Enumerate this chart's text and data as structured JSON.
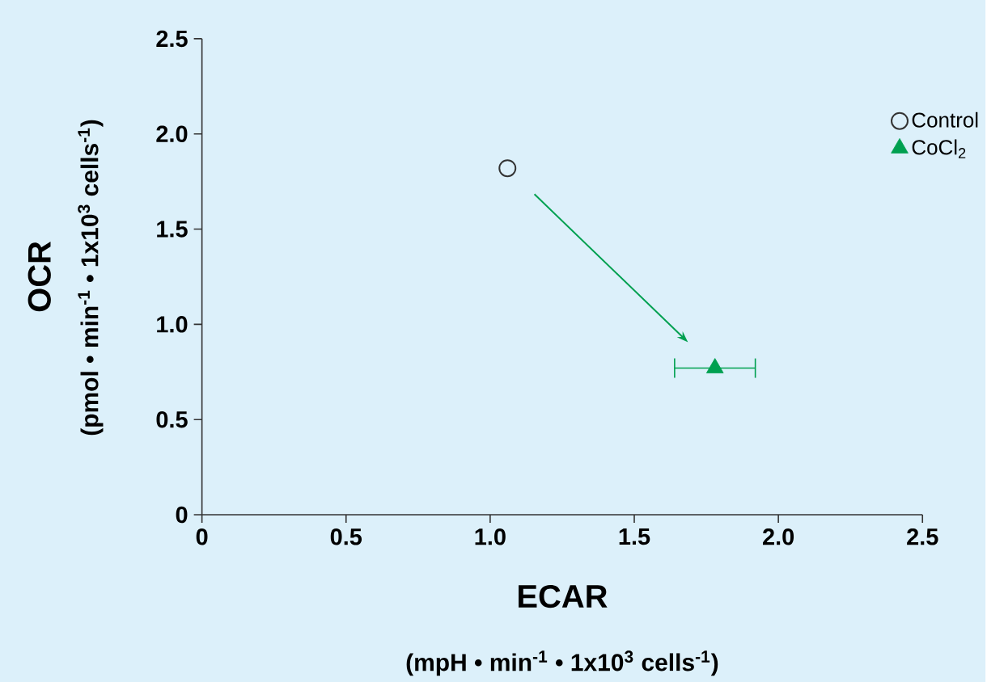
{
  "chart_data": {
    "type": "scatter",
    "xlabel": "ECAR",
    "ylabel": "OCR",
    "annotations": [
      "(mpH • min$^{-1}$ • 1x10$^{3}$ cells$^{-1}$)",
      "(pmol • min$^{-1}$ • 1x10$^{3}$ cells$^{-1}$)"
    ],
    "series": [
      {
        "name": "Control",
        "color": "#333333",
        "marker": "circle",
        "x": [
          1.06
        ],
        "values": [
          1.82
        ],
        "xerrors": [
          null
        ]
      },
      {
        "name": "CoCl$_{2}$",
        "color": "#00a050",
        "marker": "triangle",
        "x": [
          1.78
        ],
        "values": [
          0.77
        ],
        "xerrors": [
          [
            1.64,
            1.92
          ]
        ]
      }
    ],
    "xlim": [
      0,
      2.5
    ],
    "ylim": [
      0,
      2.5
    ],
    "xticks": [
      0,
      0.5,
      {
        "value": 1,
        "label": "1.0"
      },
      1.5,
      {
        "value": 2,
        "label": "2.0"
      },
      2.5
    ],
    "yticks": [
      0,
      0.5,
      {
        "value": 1,
        "label": "1.0"
      },
      1.5,
      {
        "value": 2,
        "label": "2.0"
      },
      2.5
    ],
    "legend": "top right",
    "grid": false
  }
}
